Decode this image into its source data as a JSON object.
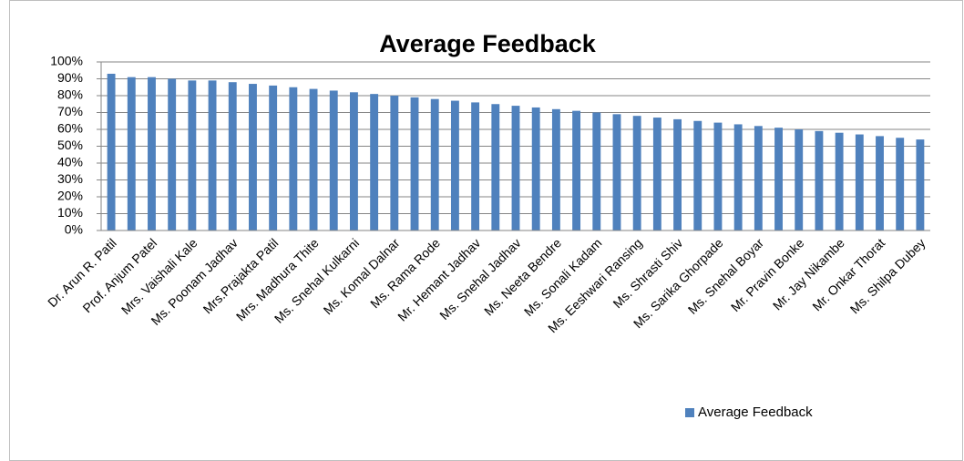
{
  "chart_data": {
    "type": "bar",
    "title": "Average Feedback",
    "categories": [
      "Dr. Arun R. Patil",
      null,
      "Prof. Anjum Patel",
      null,
      "Mrs. Vaishali Kale",
      null,
      "Ms. Poonam Jadhav",
      null,
      "Mrs.Prajakta Patil",
      null,
      "Mrs. Madhura Thite",
      null,
      "Ms. Snehal Kulkarni",
      null,
      "Ms. Komal Dalnar",
      null,
      "Ms. Rama Rode",
      null,
      "Mr. Hemant Jadhav",
      null,
      "Ms. Snehal Jadhav",
      null,
      "Ms. Neeta Bendre",
      null,
      "Ms. Sonali Kadam",
      null,
      "Ms. Eeshwari Ransing",
      null,
      "Ms. Shrasti Shiv",
      null,
      "Ms. Sarika Ghorpade",
      null,
      "Ms. Snehal Boyar",
      null,
      "Mr. Pravin Bonke",
      null,
      "Mr. Jay Nikambe",
      null,
      "Mr. Onkar Thorat",
      null,
      "Ms. Shilpa Dubey"
    ],
    "series": [
      {
        "name": "Average Feedback",
        "color": "#4f81bd",
        "values": [
          93,
          91,
          91,
          90,
          89,
          89,
          88,
          87,
          86,
          85,
          84,
          83,
          82,
          81,
          80,
          79,
          78,
          77,
          76,
          75,
          74,
          73,
          72,
          71,
          70,
          69,
          68,
          67,
          66,
          65,
          64,
          63,
          62,
          61,
          60,
          59,
          58,
          57,
          56,
          55,
          54
        ]
      }
    ],
    "ylim": [
      0,
      100
    ],
    "yticks": [
      {
        "value": 0,
        "label": "0%"
      },
      {
        "value": 10,
        "label": "10%"
      },
      {
        "value": 20,
        "label": "20%"
      },
      {
        "value": 30,
        "label": "30%"
      },
      {
        "value": 40,
        "label": "40%"
      },
      {
        "value": 50,
        "label": "50%"
      },
      {
        "value": 60,
        "label": "60%"
      },
      {
        "value": 70,
        "label": "70%"
      },
      {
        "value": 80,
        "label": "80%"
      },
      {
        "value": 90,
        "label": "90%"
      },
      {
        "value": 100,
        "label": "100%"
      }
    ],
    "grid": true,
    "legend": "bottom-right"
  }
}
